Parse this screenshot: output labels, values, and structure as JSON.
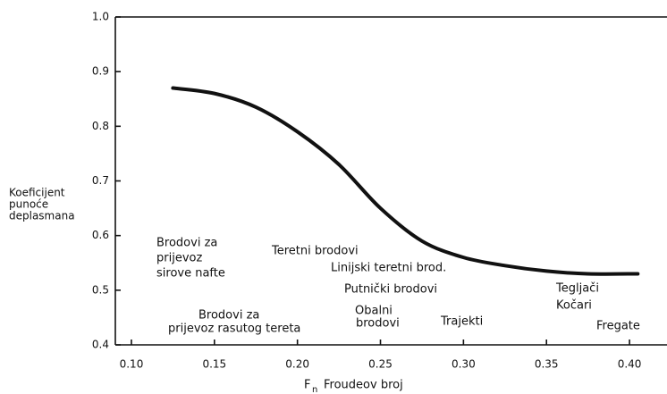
{
  "chart_data": {
    "type": "line",
    "x_label": {
      "symbol": "F",
      "subscript": "n",
      "text": "Froudeov broj"
    },
    "y_label": [
      "Koeficijent",
      "punoće",
      "deplasmana"
    ],
    "x": [
      0.125,
      0.15,
      0.175,
      0.2,
      0.225,
      0.25,
      0.275,
      0.3,
      0.325,
      0.35,
      0.375,
      0.405
    ],
    "series": [
      {
        "color": "#111111",
        "values": [
          0.87,
          0.86,
          0.835,
          0.79,
          0.73,
          0.65,
          0.59,
          0.56,
          0.545,
          0.535,
          0.53,
          0.53
        ]
      }
    ],
    "xlim": [
      0.09,
      0.42
    ],
    "xticks": [
      {
        "value": 0.1,
        "label": "0.10"
      },
      0.15,
      {
        "value": 0.2,
        "label": "0.20"
      },
      0.25,
      {
        "value": 0.3,
        "label": "0.30"
      },
      0.35,
      {
        "value": 0.4,
        "label": "0.40"
      }
    ],
    "ylim": [
      0.4,
      1.0
    ],
    "yticks": [
      0.4,
      0.5,
      0.6,
      0.7,
      0.8,
      0.9,
      {
        "value": 1.0,
        "label": "1.0"
      }
    ],
    "grid": false,
    "annotations": [
      [
        "Brodovi za",
        "prijevoz",
        "sirove nafte"
      ],
      [
        "Teretni brodovi"
      ],
      [
        "Linijski teretni brod."
      ],
      [
        "Putnički brodovi"
      ],
      [
        "Brodovi za",
        "prijevoz rasutog tereta"
      ],
      [
        "Obalni",
        "brodovi"
      ],
      [
        "Trajekti"
      ],
      [
        "Tegljači",
        "Kočari"
      ],
      [
        "Fregate"
      ]
    ]
  }
}
